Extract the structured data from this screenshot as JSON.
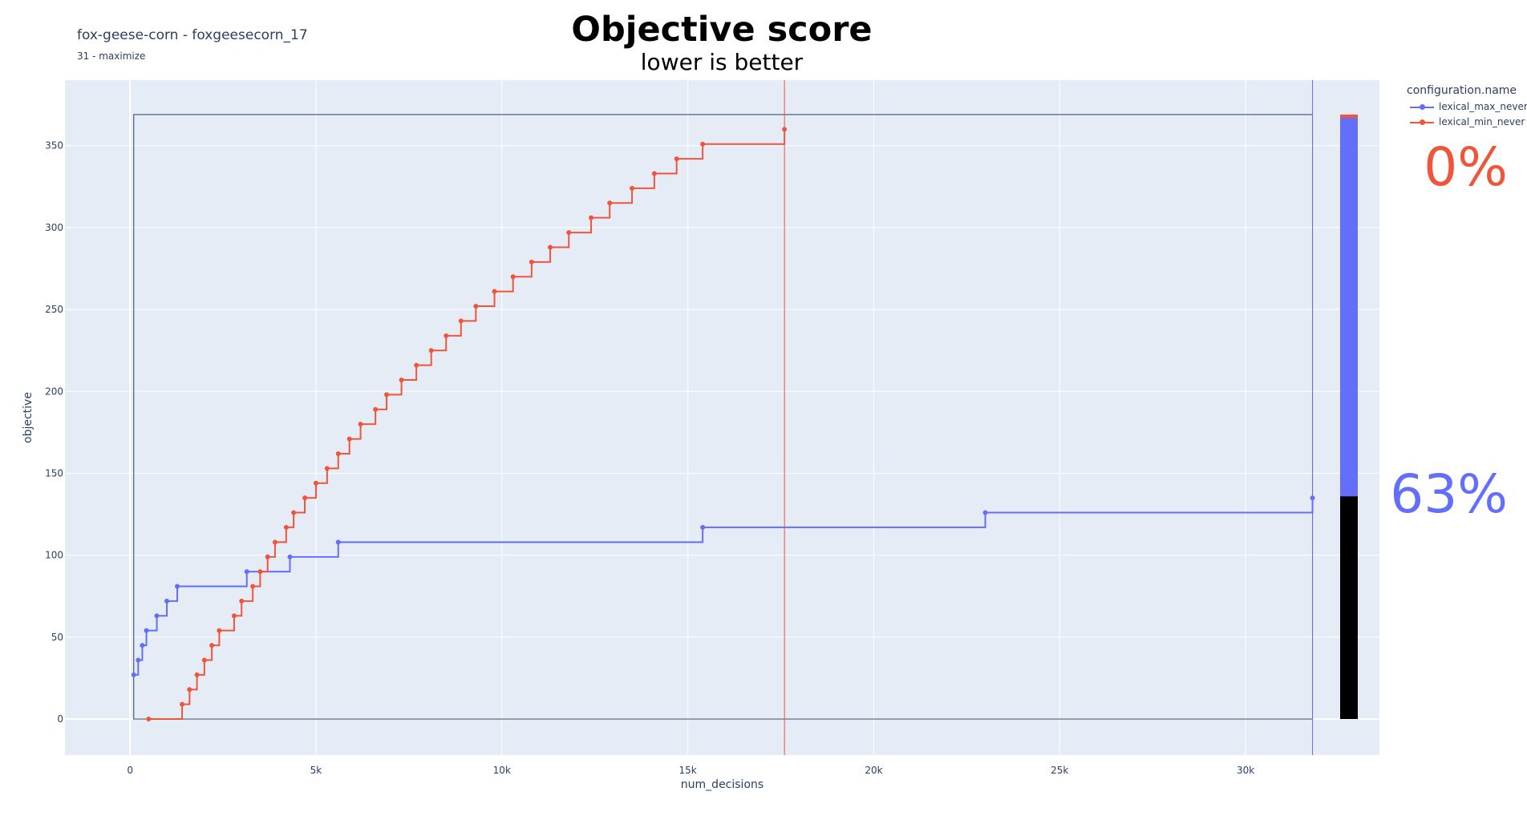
{
  "header": {
    "left_title": "fox-geese-corn - foxgeesecorn_17",
    "left_subtitle": "31 - maximize",
    "title": "Objective score",
    "subtitle": "lower is better"
  },
  "legend": {
    "title": "configuration.name",
    "items": [
      {
        "label": "lexical_max_never",
        "color": "#636efa"
      },
      {
        "label": "lexical_min_never",
        "color": "#ef553b"
      }
    ]
  },
  "percentages": [
    {
      "label": "0%",
      "color": "#ef553b"
    },
    {
      "label": "63%",
      "color": "#636efa"
    }
  ],
  "colors": {
    "plot_bg": "#e5ecf6",
    "grid": "#ffffff",
    "max_series": "#636efa",
    "min_series": "#ef553b",
    "box": "#2a3f5f",
    "bar_fill": "#000000"
  },
  "chart_data": {
    "type": "line",
    "line_shape": "step",
    "xlabel": "num_decisions",
    "ylabel": "objective",
    "xlim": [
      -1750,
      33600
    ],
    "ylim": [
      -22,
      390
    ],
    "x_ticks": [
      0,
      5000,
      10000,
      15000,
      20000,
      25000,
      30000
    ],
    "x_tick_labels": [
      "0",
      "5k",
      "10k",
      "15k",
      "20k",
      "25k",
      "30k"
    ],
    "y_ticks": [
      0,
      50,
      100,
      150,
      200,
      250,
      300,
      350
    ],
    "y_tick_labels": [
      "0",
      "50",
      "100",
      "150",
      "200",
      "250",
      "300",
      "350"
    ],
    "grid": true,
    "bounding_box": {
      "x": [
        100,
        31800
      ],
      "y": [
        0,
        369
      ]
    },
    "vlines": [
      {
        "x": 17600,
        "color": "#ef553b"
      },
      {
        "x": 31800,
        "color": "#636efa"
      }
    ],
    "series": [
      {
        "name": "lexical_max_never",
        "color": "#636efa",
        "x": [
          100,
          220,
          330,
          440,
          720,
          990,
          1270,
          3140,
          4300,
          5600,
          15400,
          23000,
          31800
        ],
        "y": [
          27,
          36,
          45,
          54,
          63,
          72,
          81,
          90,
          99,
          108,
          117,
          126,
          135
        ]
      },
      {
        "name": "lexical_min_never",
        "color": "#ef553b",
        "x": [
          500,
          1400,
          1600,
          1800,
          2000,
          2200,
          2400,
          2800,
          3000,
          3300,
          3500,
          3700,
          3900,
          4200,
          4400,
          4700,
          5000,
          5300,
          5600,
          5900,
          6200,
          6600,
          6900,
          7300,
          7700,
          8100,
          8500,
          8900,
          9300,
          9800,
          10300,
          10800,
          11300,
          11800,
          12400,
          12900,
          13500,
          14100,
          14700,
          15400,
          17600
        ],
        "y": [
          0,
          9,
          18,
          27,
          36,
          45,
          54,
          63,
          72,
          81,
          90,
          99,
          108,
          117,
          126,
          135,
          144,
          153,
          162,
          171,
          180,
          189,
          198,
          207,
          216,
          225,
          234,
          243,
          252,
          261,
          270,
          279,
          288,
          297,
          306,
          315,
          324,
          333,
          342,
          351,
          360
        ]
      }
    ],
    "side_bar": {
      "total": 369,
      "segments": [
        {
          "color": "#000000",
          "from": 0,
          "to": 136
        },
        {
          "color": "#636efa",
          "from": 136,
          "to": 367
        },
        {
          "color": "#ef553b",
          "from": 367,
          "to": 369
        }
      ]
    }
  }
}
